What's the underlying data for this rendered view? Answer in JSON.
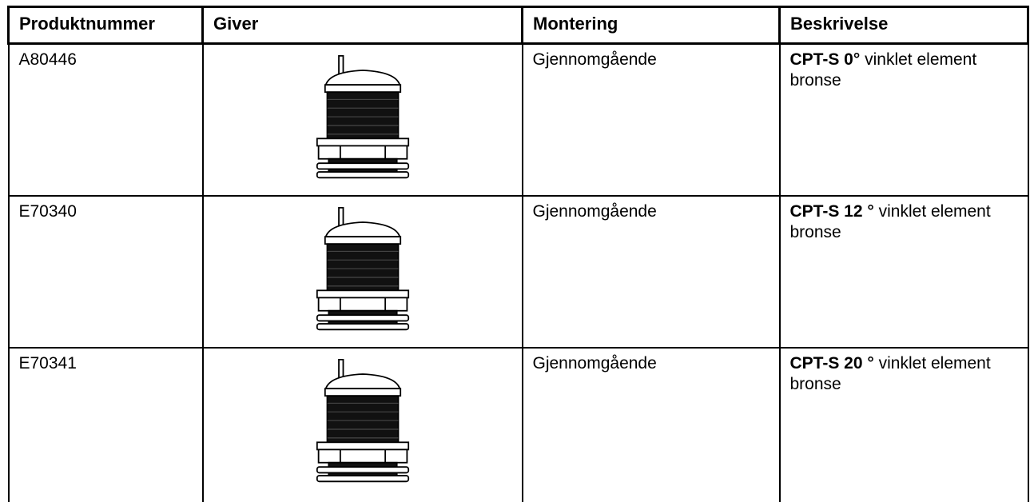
{
  "table": {
    "headers": [
      "Produktnummer",
      "Giver",
      "Montering",
      "Beskrivelse"
    ],
    "rows": [
      {
        "product": "A80446",
        "mounting": "Gjennomgående",
        "description_bold": "CPT-S 0°",
        "description_text": "vinklet element bronse"
      },
      {
        "product": "E70340",
        "mounting": "Gjennomgående",
        "description_bold": "CPT-S 12 °",
        "description_text": "vinklet element bronse"
      },
      {
        "product": "E70341",
        "mounting": "Gjennomgående",
        "description_bold": "CPT-S 20 °",
        "description_text": "vinklet element bronse"
      }
    ]
  }
}
